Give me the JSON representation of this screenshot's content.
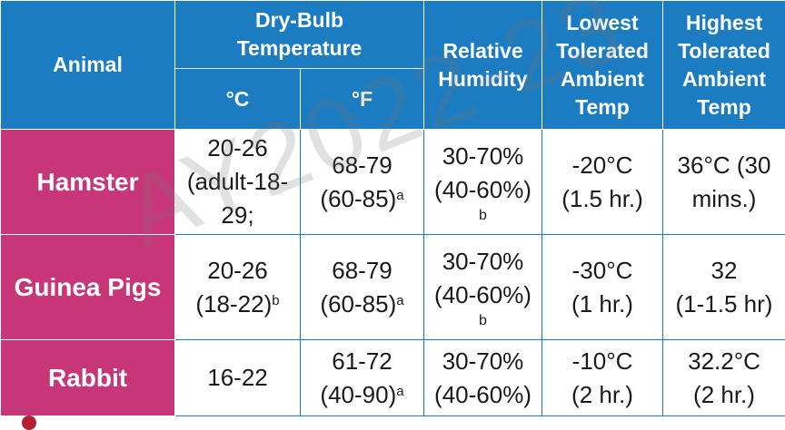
{
  "headers": {
    "animal": "Animal",
    "dry_bulb": "Dry-Bulb Temperature",
    "celsius": "°C",
    "fahrenheit": "°F",
    "humidity": "Relative Humidity",
    "lowest": "Lowest Tolerated Ambient Temp",
    "highest": "Highest Tolerated Ambient Temp"
  },
  "rows": [
    {
      "animal": "Hamster",
      "c_line1": "20-26",
      "c_line2": "(adult-18-",
      "c_line3": "29;",
      "f_line1": "68-79",
      "f_line2": "(60-85)",
      "f_sup": "a",
      "h_line1": "30-70%",
      "h_line2": "(40-60%)",
      "h_note": "b",
      "low_line1": "-20°C",
      "low_line2": "(1.5 hr.)",
      "high_line1": "36°C (30",
      "high_line2": "mins.)"
    },
    {
      "animal": "Guinea Pigs",
      "c_line1": "20-26",
      "c_line2": "(18-22)",
      "c_sup": "b",
      "f_line1": "68-79",
      "f_line2": "(60-85)",
      "f_sup": "a",
      "h_line1": "30-70%",
      "h_line2": "(40-60%)",
      "h_note": "b",
      "low_line1": "-30°C",
      "low_line2": "(1 hr.)",
      "high_line1": "32",
      "high_line2": "(1-1.5 hr)"
    },
    {
      "animal": "Rabbit",
      "c_line1": "16-22",
      "f_line1": "61-72",
      "f_line2": "(40-90)",
      "f_sup": "a",
      "h_line1": "30-70%",
      "h_line2": "(40-60%)",
      "low_line1": "-10°C",
      "low_line2": "(2 hr.)",
      "high_line1": "32.2°C",
      "high_line2": "(2 hr.)"
    }
  ],
  "watermark": "AY2022-23",
  "colors": {
    "header_blue": "#1c7cc1",
    "row_magenta": "#c8367a"
  }
}
